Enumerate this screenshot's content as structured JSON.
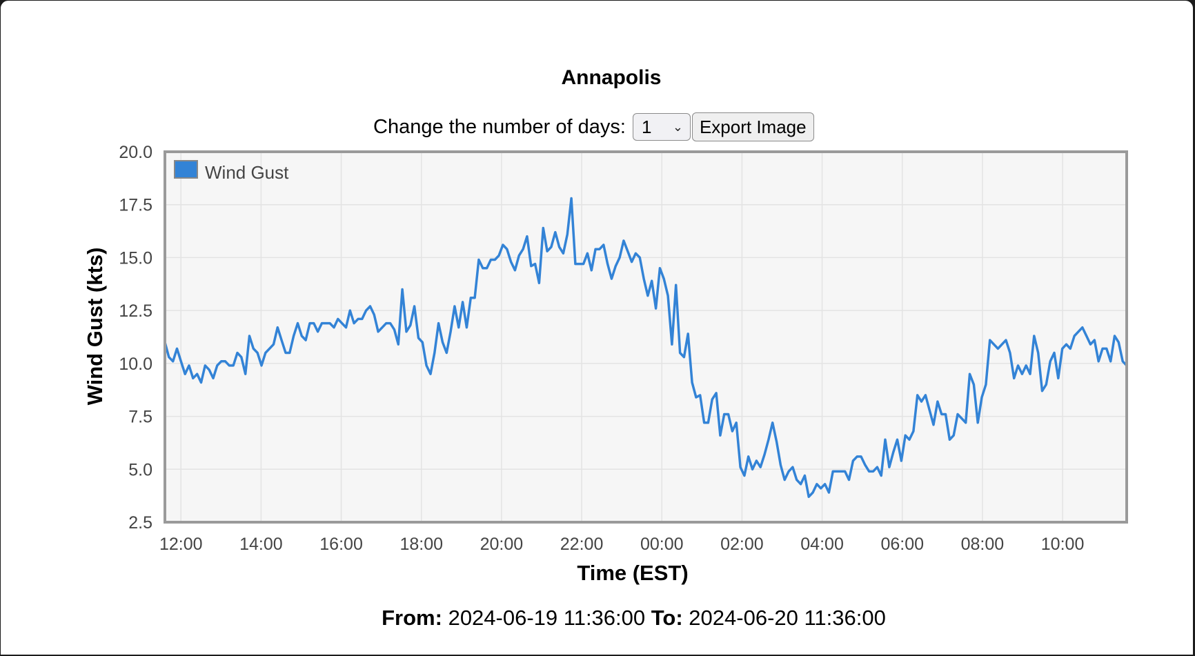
{
  "page": {
    "title": "Annapolis",
    "days_label": "Change the number of days:",
    "days_value": "1",
    "export_label": "Export Image",
    "from_label": "From:",
    "from_value": "2024-06-19 11:36:00",
    "to_label": "To:",
    "to_value": "2024-06-20 11:36:00"
  },
  "chart_data": {
    "type": "line",
    "title": "Annapolis",
    "xlabel": "Time (EST)",
    "ylabel": "Wind Gust (kts)",
    "ylim": [
      2.5,
      20.0
    ],
    "yticks": [
      "20.0",
      "17.5",
      "15.0",
      "12.5",
      "10.0",
      "7.5",
      "5.0",
      "2.5"
    ],
    "xlim": [
      "2024-06-19 11:36",
      "2024-06-20 11:36"
    ],
    "xticks": [
      "12:00",
      "14:00",
      "16:00",
      "18:00",
      "20:00",
      "22:00",
      "00:00",
      "02:00",
      "04:00",
      "06:00",
      "08:00",
      "10:00"
    ],
    "grid": true,
    "legend": "top-left",
    "series": [
      {
        "name": "Wind Gust",
        "color": "#3383d6",
        "interval_minutes": 6,
        "values": [
          11.0,
          10.3,
          10.1,
          10.7,
          10.1,
          9.5,
          9.9,
          9.3,
          9.5,
          9.1,
          9.9,
          9.7,
          9.3,
          9.9,
          10.1,
          10.1,
          9.9,
          9.9,
          10.5,
          10.3,
          9.5,
          11.3,
          10.7,
          10.5,
          9.9,
          10.5,
          10.7,
          10.9,
          11.7,
          11.1,
          10.5,
          10.5,
          11.3,
          11.9,
          11.3,
          11.1,
          11.9,
          11.9,
          11.5,
          11.9,
          11.9,
          11.9,
          11.7,
          12.1,
          11.9,
          11.7,
          12.5,
          11.9,
          12.1,
          12.1,
          12.5,
          12.7,
          12.3,
          11.5,
          11.7,
          11.9,
          11.9,
          11.6,
          10.9,
          13.5,
          11.5,
          11.8,
          12.7,
          11.2,
          11.0,
          9.9,
          9.5,
          10.5,
          11.9,
          11.0,
          10.5,
          11.5,
          12.7,
          11.7,
          12.9,
          11.7,
          13.1,
          13.1,
          14.9,
          14.5,
          14.5,
          14.9,
          14.9,
          15.1,
          15.6,
          15.4,
          14.8,
          14.4,
          15.1,
          15.4,
          16.0,
          14.6,
          14.7,
          13.8,
          16.4,
          15.3,
          15.5,
          16.2,
          15.5,
          15.2,
          16.1,
          17.8,
          14.7,
          14.7,
          14.7,
          15.2,
          14.4,
          15.4,
          15.4,
          15.6,
          14.7,
          14.0,
          14.6,
          15.0,
          15.8,
          15.3,
          14.8,
          15.2,
          15.0,
          14.0,
          13.2,
          13.9,
          12.6,
          14.5,
          14.0,
          13.2,
          10.9,
          13.7,
          10.5,
          10.3,
          11.4,
          9.1,
          8.4,
          8.5,
          7.2,
          7.2,
          8.3,
          8.6,
          6.6,
          7.6,
          7.6,
          6.8,
          7.2,
          5.1,
          4.7,
          5.6,
          5.0,
          5.4,
          5.1,
          5.7,
          6.4,
          7.2,
          6.3,
          5.2,
          4.5,
          4.9,
          5.1,
          4.5,
          4.3,
          4.7,
          3.7,
          3.9,
          4.3,
          4.1,
          4.3,
          3.9,
          4.9,
          4.9,
          4.9,
          4.9,
          4.5,
          5.4,
          5.6,
          5.6,
          5.2,
          4.9,
          4.9,
          5.1,
          4.7,
          6.4,
          5.1,
          5.8,
          6.4,
          5.4,
          6.6,
          6.4,
          6.8,
          8.5,
          8.2,
          8.5,
          7.8,
          7.1,
          8.2,
          7.6,
          7.6,
          6.4,
          6.6,
          7.6,
          7.4,
          7.2,
          9.5,
          9.0,
          7.2,
          8.4,
          9.0,
          11.1,
          10.9,
          10.7,
          10.9,
          11.1,
          10.5,
          9.3,
          9.9,
          9.5,
          9.9,
          9.5,
          11.3,
          10.5,
          8.7,
          9.0,
          10.1,
          10.5,
          9.3,
          10.7,
          10.9,
          10.7,
          11.3,
          11.5,
          11.7,
          11.3,
          10.9,
          11.1,
          10.1,
          10.7,
          10.7,
          10.1,
          11.3,
          11.0,
          10.1,
          9.9
        ]
      }
    ]
  }
}
